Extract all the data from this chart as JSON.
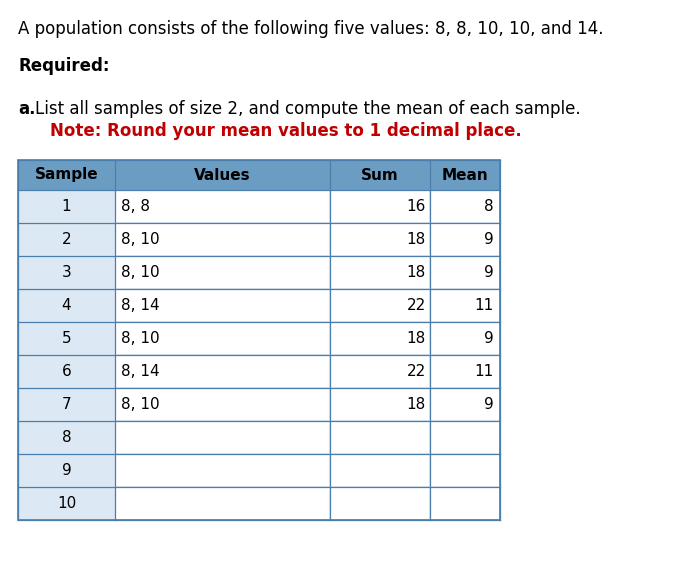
{
  "title_line": "A population consists of the following five values: 8, 8, 10, 10, and 14.",
  "required_label": "Required:",
  "part_a_bold": "a.",
  "part_a_rest": "  List all samples of size 2, and compute the mean of each sample.",
  "part_a_note": "Note: Round your mean values to 1 decimal place.",
  "col_headers": [
    "Sample",
    "Values",
    "Sum",
    "Mean"
  ],
  "samples": [
    "1",
    "2",
    "3",
    "4",
    "5",
    "6",
    "7",
    "8",
    "9",
    "10"
  ],
  "values_col": [
    "8, 8",
    "8, 10",
    "8, 10",
    "8, 14",
    "8, 10",
    "8, 14",
    "8, 10",
    "",
    "",
    ""
  ],
  "sum_col": [
    "16",
    "18",
    "18",
    "22",
    "18",
    "22",
    "18",
    "",
    "",
    ""
  ],
  "mean_col": [
    "8",
    "9",
    "9",
    "11",
    "9",
    "11",
    "9",
    "",
    "",
    ""
  ],
  "bg_color": "#ffffff",
  "header_bg": "#6b9dc2",
  "row_bg": "#dce9f5",
  "cell_bg": "#ffffff",
  "border_color": "#4a7ead",
  "outer_border_color": "#4a7ead",
  "note_color": "#c00000",
  "text_color": "#000000",
  "header_text_color": "#000000",
  "title_fontsize": 12,
  "body_fontsize": 11.5
}
